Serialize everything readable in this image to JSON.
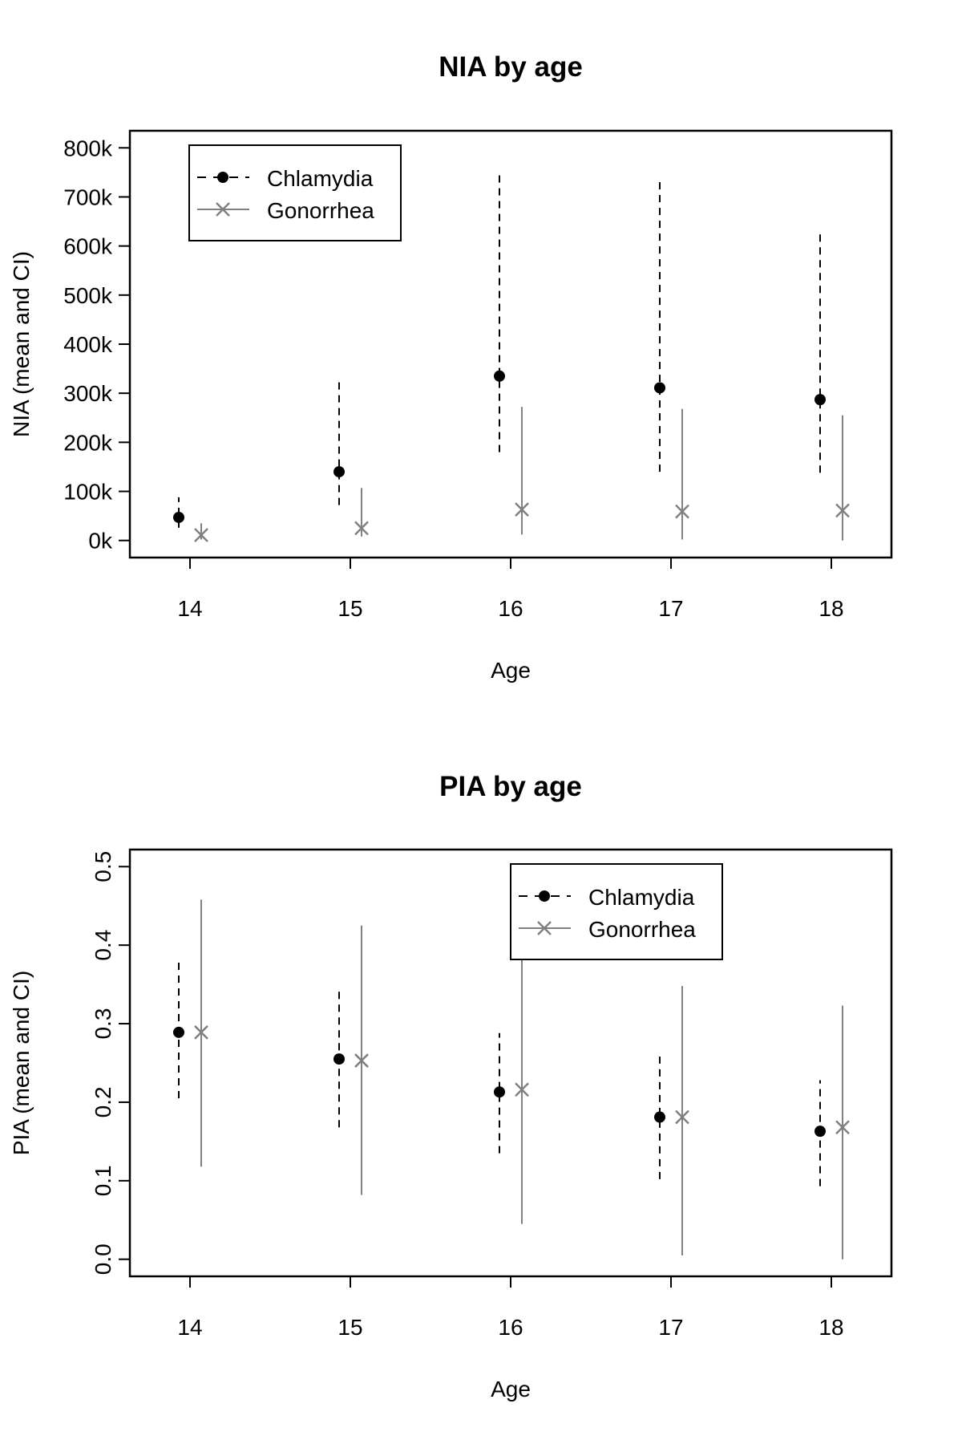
{
  "chart_data": [
    {
      "type": "errorbar",
      "title": "NIA by age",
      "xlabel": "Age",
      "ylabel": "NIA (mean and CI)",
      "categories": [
        "14",
        "15",
        "16",
        "17",
        "18"
      ],
      "ylim": [
        0,
        800000
      ],
      "yticks": [
        0,
        100000,
        200000,
        300000,
        400000,
        500000,
        600000,
        700000,
        800000
      ],
      "ytick_labels": [
        "0k",
        "100k",
        "200k",
        "300k",
        "400k",
        "500k",
        "600k",
        "700k",
        "800k"
      ],
      "ytick_orientation": "horizontal",
      "legend_position": "top-left",
      "grid": false,
      "series": [
        {
          "name": "Chlamydia",
          "color": "#000000",
          "marker": "dot",
          "line": "dashed",
          "mean": [
            47000,
            140000,
            335000,
            311000,
            287000
          ],
          "lower": [
            26000,
            72000,
            180000,
            140000,
            138000
          ],
          "upper": [
            88000,
            330000,
            745000,
            740000,
            625000
          ]
        },
        {
          "name": "Gonorrhea",
          "color": "#808080",
          "marker": "x",
          "line": "solid",
          "mean": [
            11000,
            25000,
            63000,
            59000,
            61000
          ],
          "lower": [
            2000,
            8000,
            12000,
            2000,
            0
          ],
          "upper": [
            35000,
            107000,
            272000,
            268000,
            255000
          ]
        }
      ]
    },
    {
      "type": "errorbar",
      "title": "PIA by age",
      "xlabel": "Age",
      "ylabel": "PIA (mean and CI)",
      "categories": [
        "14",
        "15",
        "16",
        "17",
        "18"
      ],
      "ylim": [
        0,
        0.5
      ],
      "yticks": [
        0,
        0.1,
        0.2,
        0.3,
        0.4,
        0.5
      ],
      "ytick_labels": [
        "0.0",
        "0.1",
        "0.2",
        "0.3",
        "0.4",
        "0.5"
      ],
      "ytick_orientation": "vertical",
      "legend_position": "top-center",
      "grid": false,
      "series": [
        {
          "name": "Chlamydia",
          "color": "#000000",
          "marker": "dot",
          "line": "dashed",
          "mean": [
            0.289,
            0.255,
            0.213,
            0.181,
            0.163
          ],
          "lower": [
            0.205,
            0.168,
            0.135,
            0.102,
            0.093
          ],
          "upper": [
            0.38,
            0.346,
            0.288,
            0.258,
            0.228
          ]
        },
        {
          "name": "Gonorrhea",
          "color": "#808080",
          "marker": "x",
          "line": "solid",
          "mean": [
            0.289,
            0.253,
            0.216,
            0.181,
            0.168
          ],
          "lower": [
            0.118,
            0.082,
            0.045,
            0.005,
            0.0
          ],
          "upper": [
            0.458,
            0.425,
            0.384,
            0.348,
            0.323
          ]
        }
      ]
    }
  ]
}
